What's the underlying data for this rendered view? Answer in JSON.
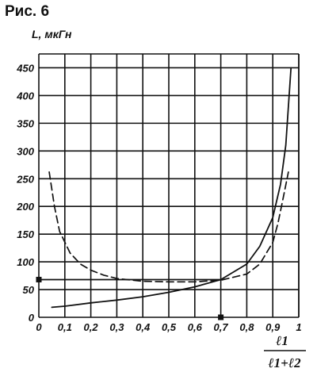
{
  "figure": {
    "title": "Рис. 6"
  },
  "chart_data": {
    "type": "line",
    "ylabel": "L, мкГн",
    "xlabel_numerator": "ℓ1",
    "xlabel_denominator": "ℓ1+ℓ2",
    "xlim": [
      0,
      1.0
    ],
    "ylim": [
      0,
      475
    ],
    "x_ticks": [
      "0",
      "0,1",
      "0,2",
      "0,3",
      "0,4",
      "0,5",
      "0,6",
      "0,7",
      "0,8",
      "0,9",
      "1"
    ],
    "x_tick_values": [
      0,
      0.1,
      0.2,
      0.3,
      0.4,
      0.5,
      0.6,
      0.7,
      0.8,
      0.9,
      1.0
    ],
    "y_ticks": [
      "0",
      "50",
      "100",
      "150",
      "200",
      "250",
      "300",
      "350",
      "400",
      "450"
    ],
    "y_tick_values": [
      0,
      50,
      100,
      150,
      200,
      250,
      300,
      350,
      400,
      450
    ],
    "grid": true,
    "series": [
      {
        "style": "solid",
        "x": [
          0.05,
          0.1,
          0.2,
          0.3,
          0.4,
          0.5,
          0.6,
          0.7,
          0.8,
          0.85,
          0.9,
          0.93,
          0.95,
          0.97
        ],
        "y": [
          18,
          20,
          26,
          31,
          37,
          45,
          55,
          68,
          96,
          128,
          180,
          240,
          310,
          450
        ]
      },
      {
        "style": "dashed",
        "x": [
          0.04,
          0.06,
          0.08,
          0.12,
          0.16,
          0.2,
          0.25,
          0.3,
          0.4,
          0.5,
          0.6,
          0.7,
          0.8,
          0.85,
          0.9,
          0.92,
          0.94,
          0.96
        ],
        "y": [
          262,
          200,
          155,
          116,
          96,
          85,
          76,
          70,
          65,
          64,
          64,
          67,
          78,
          96,
          135,
          170,
          215,
          262
        ]
      },
      {
        "style": "solid",
        "x": [
          0.0,
          0.7
        ],
        "y": [
          68,
          68
        ]
      }
    ],
    "markers": [
      {
        "x": 0.0,
        "y": 68
      },
      {
        "x": 0.7,
        "y": 0
      }
    ]
  }
}
